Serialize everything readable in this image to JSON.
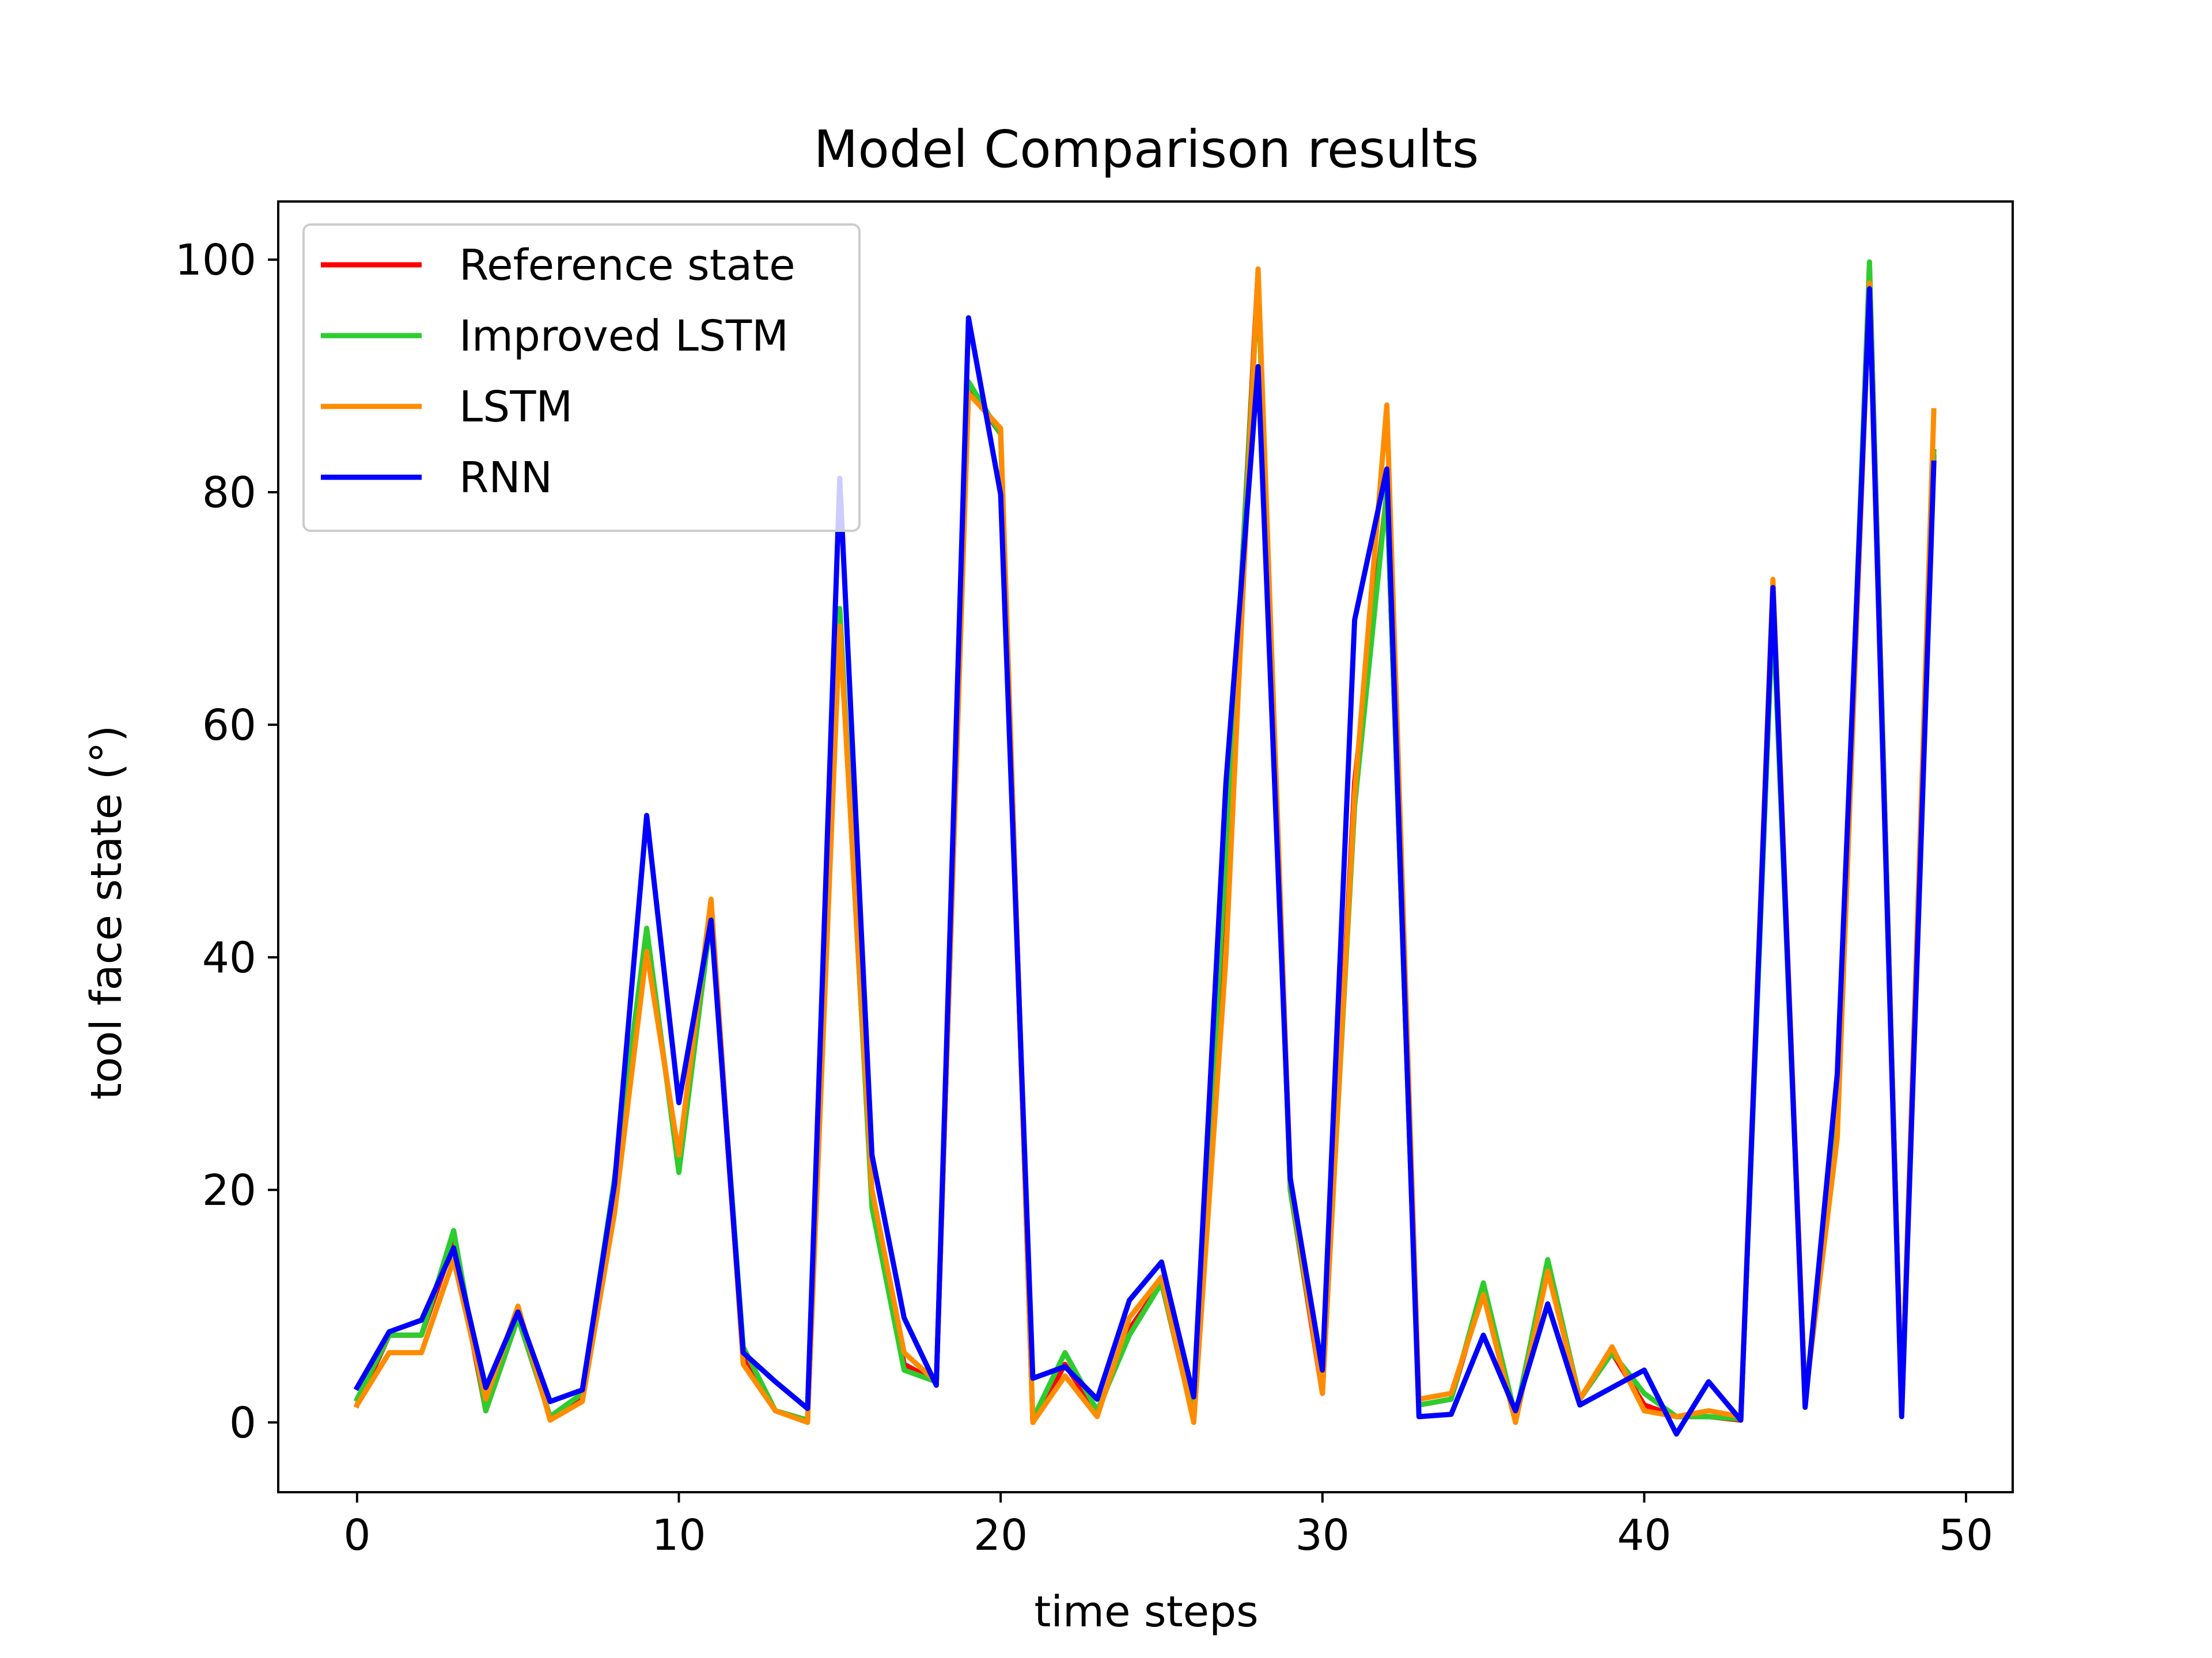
{
  "chart_data": {
    "type": "line",
    "title": "Model Comparison results",
    "xlabel": "time steps",
    "ylabel": "tool face state (°)",
    "xlim": [
      -2.45,
      51.45
    ],
    "ylim": [
      -6,
      105
    ],
    "xticks": [
      0,
      10,
      20,
      30,
      40,
      50
    ],
    "yticks": [
      0,
      20,
      40,
      60,
      80,
      100
    ],
    "grid": false,
    "legend_position": "top-left",
    "x": [
      0,
      1,
      2,
      3,
      4,
      5,
      6,
      7,
      8,
      9,
      10,
      11,
      12,
      13,
      14,
      15,
      16,
      17,
      18,
      19,
      20,
      21,
      22,
      23,
      24,
      25,
      26,
      27,
      28,
      29,
      30,
      31,
      32,
      33,
      34,
      35,
      36,
      37,
      38,
      39,
      40,
      41,
      42,
      43,
      44,
      45,
      46,
      47,
      48,
      49
    ],
    "series": [
      {
        "name": "Reference state",
        "color": "#ff0000",
        "values": [
          1.5,
          7.5,
          7.5,
          15.5,
          1.0,
          9.0,
          0.5,
          2.0,
          20.5,
          42.0,
          22.0,
          43.5,
          5.5,
          1.0,
          0.2,
          69.0,
          19.0,
          5.0,
          3.5,
          89.0,
          85.0,
          0.0,
          5.0,
          0.8,
          8.0,
          12.0,
          0.3,
          48.0,
          99.0,
          20.0,
          2.5,
          55.0,
          80.0,
          1.5,
          2.0,
          11.5,
          0.3,
          13.5,
          2.0,
          6.0,
          1.5,
          0.5,
          0.5,
          0.2,
          71.0,
          2.0,
          26.0,
          99.5,
          1.0,
          83.0
        ]
      },
      {
        "name": "Improved LSTM",
        "color": "#2ecc2e",
        "values": [
          2.0,
          7.5,
          7.5,
          16.5,
          1.0,
          9.0,
          0.5,
          2.5,
          21.0,
          42.5,
          21.5,
          43.5,
          6.5,
          1.0,
          0.2,
          70.0,
          18.5,
          4.5,
          3.5,
          89.5,
          85.0,
          0.3,
          6.0,
          1.0,
          7.5,
          12.0,
          0.5,
          49.0,
          98.0,
          20.0,
          3.0,
          53.0,
          80.0,
          1.5,
          2.0,
          12.0,
          0.5,
          14.0,
          2.0,
          6.0,
          2.5,
          0.5,
          0.5,
          0.3,
          70.0,
          2.0,
          27.0,
          99.8,
          1.0,
          83.5
        ]
      },
      {
        "name": "LSTM",
        "color": "#ff8c00",
        "values": [
          1.5,
          6.0,
          6.0,
          14.0,
          2.0,
          10.0,
          0.2,
          1.8,
          18.0,
          40.5,
          23.0,
          45.0,
          5.0,
          1.0,
          0.0,
          68.5,
          20.0,
          6.0,
          3.5,
          88.5,
          85.5,
          0.0,
          4.0,
          0.5,
          9.0,
          12.5,
          0.0,
          40.0,
          99.2,
          21.0,
          2.5,
          54.0,
          87.5,
          2.0,
          2.5,
          11.0,
          0.0,
          13.0,
          2.0,
          6.5,
          1.0,
          0.5,
          1.0,
          0.5,
          72.5,
          2.0,
          24.5,
          98.0,
          1.0,
          87.0
        ]
      },
      {
        "name": "RNN",
        "color": "#0000ff",
        "values": [
          3.0,
          7.8,
          8.8,
          15.0,
          3.0,
          9.5,
          1.8,
          2.8,
          20.5,
          52.2,
          27.5,
          43.2,
          6.0,
          3.5,
          1.2,
          81.2,
          23.0,
          9.0,
          3.2,
          95.0,
          79.8,
          3.8,
          4.8,
          2.0,
          10.5,
          13.8,
          2.2,
          55.0,
          90.8,
          21.0,
          4.5,
          69.0,
          82.0,
          0.5,
          0.7,
          7.5,
          1.0,
          10.2,
          1.5,
          3.0,
          4.5,
          -1.0,
          3.5,
          0.2,
          71.8,
          1.3,
          30.0,
          97.5,
          0.5,
          82.5
        ]
      }
    ]
  }
}
